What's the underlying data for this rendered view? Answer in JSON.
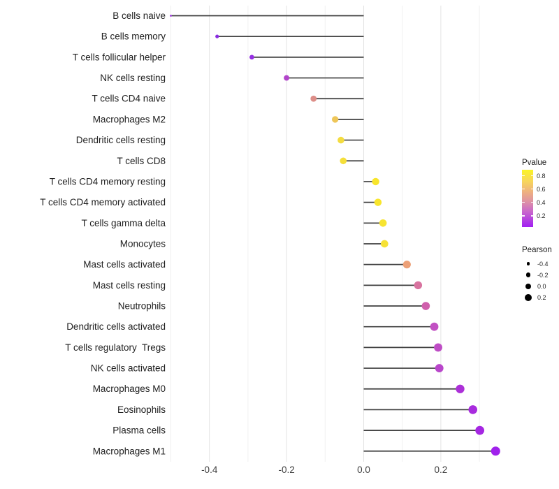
{
  "figure": {
    "background": "#FFFFFF"
  },
  "chart_data": {
    "type": "lollipop",
    "orientation": "horizontal",
    "title": "",
    "xlabel": "",
    "ylabel": "",
    "x_ticks": [
      "-0.4",
      "-0.2",
      "0.0",
      "0.2"
    ],
    "x_tick_values": [
      -0.4,
      -0.2,
      0.0,
      0.2
    ],
    "x_minor_gridlines": [
      -0.5,
      -0.3,
      -0.1,
      0.1,
      0.3
    ],
    "xlim": [
      -0.52,
      0.36
    ],
    "grid": "on",
    "baseline": 0,
    "points": [
      {
        "label": "B cells naive",
        "pearson": -0.5,
        "pvalue_approx": 0.08,
        "color": "#9B30DB"
      },
      {
        "label": "B cells memory",
        "pearson": -0.38,
        "pvalue_approx": 0.05,
        "color": "#8A2BE2"
      },
      {
        "label": "T cells follicular helper",
        "pearson": -0.29,
        "pvalue_approx": 0.07,
        "color": "#9630E3"
      },
      {
        "label": "NK cells resting",
        "pearson": -0.2,
        "pvalue_approx": 0.15,
        "color": "#B144CA"
      },
      {
        "label": "T cells CD4 naive",
        "pearson": -0.13,
        "pvalue_approx": 0.45,
        "color": "#DD8E88"
      },
      {
        "label": "Macrophages M2",
        "pearson": -0.074,
        "pvalue_approx": 0.65,
        "color": "#EEC659"
      },
      {
        "label": "Dendritic cells resting",
        "pearson": -0.059,
        "pvalue_approx": 0.72,
        "color": "#F4DC40"
      },
      {
        "label": "T cells CD8",
        "pearson": -0.053,
        "pvalue_approx": 0.75,
        "color": "#F5DF3A"
      },
      {
        "label": "T cells CD4 memory resting",
        "pearson": 0.031,
        "pvalue_approx": 0.8,
        "color": "#F8E52C"
      },
      {
        "label": "T cells CD4 memory activated",
        "pearson": 0.037,
        "pvalue_approx": 0.8,
        "color": "#F8E52C"
      },
      {
        "label": "T cells gamma delta",
        "pearson": 0.05,
        "pvalue_approx": 0.79,
        "color": "#F7E431"
      },
      {
        "label": "Monocytes",
        "pearson": 0.054,
        "pvalue_approx": 0.78,
        "color": "#F6E135"
      },
      {
        "label": "Mast cells activated",
        "pearson": 0.112,
        "pvalue_approx": 0.55,
        "color": "#ECA077"
      },
      {
        "label": "Mast cells resting",
        "pearson": 0.141,
        "pvalue_approx": 0.35,
        "color": "#D8739F"
      },
      {
        "label": "Neutrophils",
        "pearson": 0.161,
        "pvalue_approx": 0.3,
        "color": "#D05FAC"
      },
      {
        "label": "Dendritic cells activated",
        "pearson": 0.183,
        "pvalue_approx": 0.22,
        "color": "#C251C3"
      },
      {
        "label": "T cells regulatory  Tregs",
        "pearson": 0.193,
        "pvalue_approx": 0.2,
        "color": "#BE4CC5"
      },
      {
        "label": "NK cells activated",
        "pearson": 0.196,
        "pvalue_approx": 0.18,
        "color": "#B946CB"
      },
      {
        "label": "Macrophages M0",
        "pearson": 0.25,
        "pvalue_approx": 0.12,
        "color": "#AC30D8"
      },
      {
        "label": "Eosinophils",
        "pearson": 0.283,
        "pvalue_approx": 0.1,
        "color": "#A82BDE"
      },
      {
        "label": "Plasma cells",
        "pearson": 0.301,
        "pvalue_approx": 0.09,
        "color": "#A527E2"
      },
      {
        "label": "Macrophages M1",
        "pearson": 0.342,
        "pvalue_approx": 0.07,
        "color": "#A021EC"
      }
    ],
    "legend": {
      "position": "right",
      "pvalue": {
        "title": "Pvalue",
        "ticks": [
          "0.8",
          "0.6",
          "0.4",
          "0.2"
        ],
        "tick_values": [
          0.8,
          0.6,
          0.4,
          0.2
        ],
        "range": [
          0.03,
          0.89
        ],
        "gradient_stops": [
          {
            "color": "#FBF426",
            "pos": 0
          },
          {
            "color": "#F7D65B",
            "pos": 20
          },
          {
            "color": "#EDAE83",
            "pos": 40
          },
          {
            "color": "#DF93A3",
            "pos": 55
          },
          {
            "color": "#C967CC",
            "pos": 73
          },
          {
            "color": "#A11FF2",
            "pos": 100
          }
        ]
      },
      "pearson": {
        "title": "Pearson",
        "dot_color": "#000000",
        "entries": [
          {
            "label": "-0.4",
            "value": -0.4
          },
          {
            "label": "-0.2",
            "value": -0.2
          },
          {
            "label": "0.0",
            "value": 0.0
          },
          {
            "label": "0.2",
            "value": 0.2
          }
        ]
      }
    },
    "colors": {
      "segment": "#3F3F3F",
      "grid_major": "#E3E3E3",
      "grid_minor": "#F0F0F0",
      "axis_text": "#3D3D3D",
      "label_text": "#212121"
    }
  }
}
